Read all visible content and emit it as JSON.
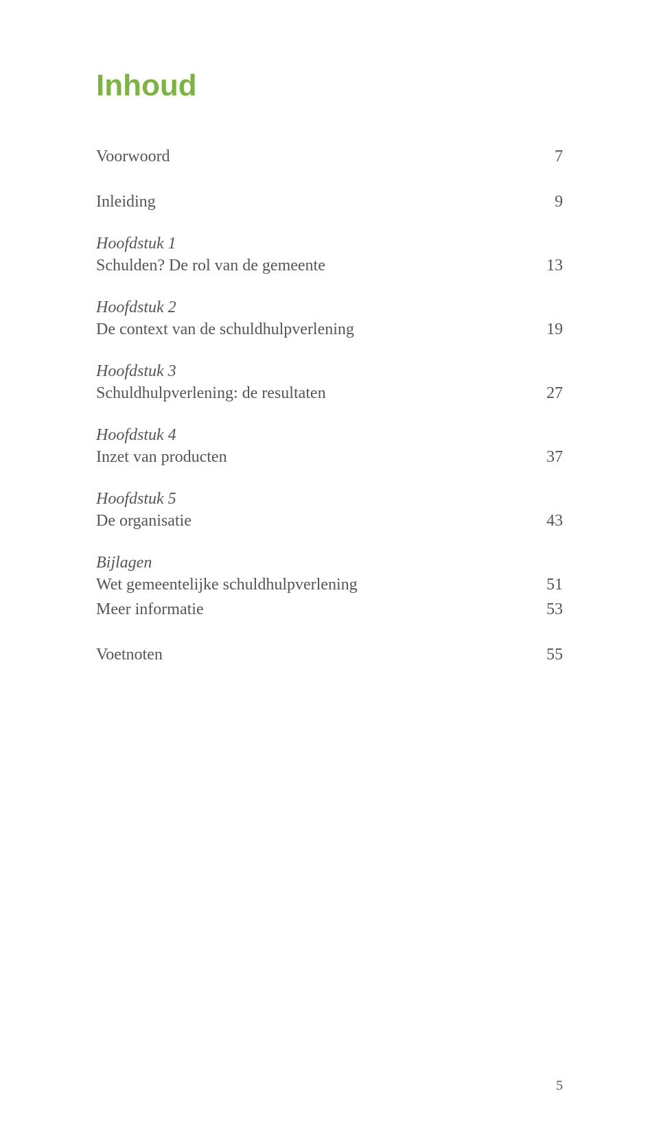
{
  "doc": {
    "title": "Inhoud",
    "page_number": "5",
    "colors": {
      "title_color": "#7cb342",
      "text_color": "#555555",
      "background": "#ffffff"
    },
    "typography": {
      "title_fontsize": 44,
      "body_fontsize": 24,
      "pagenum_fontsize": 20,
      "chapter_style": "italic"
    },
    "entries": [
      {
        "chapter": null,
        "title": "Voorwoord",
        "page": "7"
      },
      {
        "chapter": null,
        "title": "Inleiding",
        "page": "9"
      },
      {
        "chapter": "Hoofdstuk 1",
        "title": "Schulden? De rol van de gemeente",
        "page": "13"
      },
      {
        "chapter": "Hoofdstuk 2",
        "title": "De context van de schuldhulpverlening",
        "page": "19"
      },
      {
        "chapter": "Hoofdstuk 3",
        "title": "Schuldhulpverlening: de resultaten",
        "page": "27"
      },
      {
        "chapter": "Hoofdstuk 4",
        "title": "Inzet van producten",
        "page": "37"
      },
      {
        "chapter": "Hoofdstuk 5",
        "title": "De organisatie",
        "page": "43"
      },
      {
        "chapter": "Bijlagen",
        "title": null,
        "page": null
      },
      {
        "chapter": null,
        "title": "Wet gemeentelijke schuldhulpverlening",
        "page": "51"
      },
      {
        "chapter": null,
        "title": "Meer informatie",
        "page": "53"
      },
      {
        "chapter": null,
        "title": "Voetnoten",
        "page": "55"
      }
    ]
  }
}
